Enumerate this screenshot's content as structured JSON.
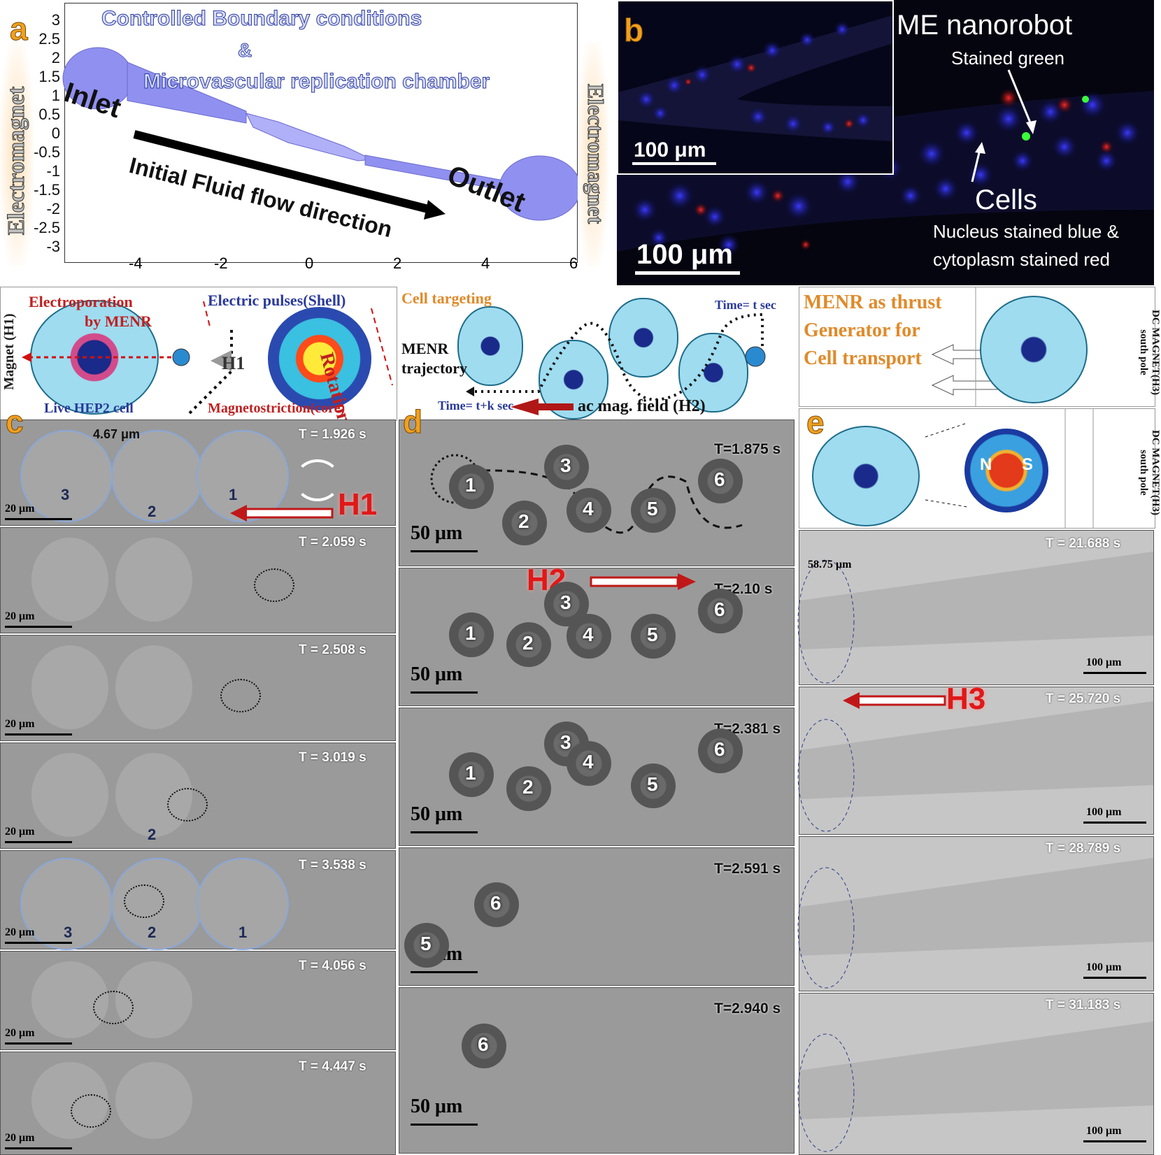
{
  "panels": {
    "a": "a",
    "b": "b",
    "c": "c",
    "d": "d",
    "e": "e"
  },
  "panel_a": {
    "title_line1": "Controlled Boundary conditions",
    "title_line2": "&",
    "title_line3": "Microvascular replication chamber",
    "inlet": "Inlet",
    "outlet": "Outlet",
    "flow_label": "Initial Fluid flow direction",
    "electromagnet_left": "Electromagnet",
    "electromagnet_right": "Electromagnet",
    "y_ticks": [
      "3",
      "2.5",
      "2",
      "1.5",
      "1",
      "0.5",
      "0",
      "-0.5",
      "-1",
      "-1.5",
      "-2",
      "-2.5",
      "-3"
    ],
    "x_ticks": [
      "-4",
      "-2",
      "0",
      "2",
      "4",
      "6"
    ]
  },
  "panel_b": {
    "inset_scale": "100 μm",
    "main_scale": "100 μm",
    "nanorobot": "ME nanorobot",
    "stained_green": "Stained green",
    "cells": "Cells",
    "stain_line1": "Nucleus stained blue &",
    "stain_line2": "cytoplasm stained red"
  },
  "band1": {
    "magnet_h1": "Magnet (H1)",
    "electroporation_line1": "Electroporation",
    "electroporation_line2": "by MENR",
    "electric_pulses": "Electric pulses(Shell)",
    "rotation": "Rotation",
    "h1": "H1",
    "live_cell": "Live HEP2 cell",
    "magnetostriction": "Magnetostriction(core)"
  },
  "band2": {
    "cell_targeting": "Cell targeting",
    "time_t": "Time= t sec",
    "menr": "MENR",
    "trajectory": "trajectory",
    "time_tk": "Time= t+k sec",
    "ac_field": "ac mag. field (H2)"
  },
  "band3": {
    "thrust_line1": "MENR as thrust",
    "thrust_line2": "Generator for",
    "thrust_line3": "Cell transport",
    "dc_magnet": "DC MAGNET(H3) south pole"
  },
  "panel_e_band": {
    "dc_magnet": "DC MAGNET(H3) south pole",
    "n": "N",
    "s": "S"
  },
  "panel_c": {
    "distance": "4.67 μm",
    "scale": "20 μm",
    "h1": "H1",
    "frames": [
      {
        "time": "T = 1.926 s",
        "nums": [
          "3",
          "2",
          "1"
        ]
      },
      {
        "time": "T = 2.059 s"
      },
      {
        "time": "T = 2.508 s"
      },
      {
        "time": "T = 3.019 s",
        "nums": [
          "2"
        ]
      },
      {
        "time": "T = 3.538 s",
        "nums": [
          "3",
          "2",
          "1"
        ]
      },
      {
        "time": "T = 4.056 s"
      },
      {
        "time": "T = 4.447 s"
      }
    ]
  },
  "panel_d": {
    "scale": "50 μm",
    "h2": "H2",
    "frames": [
      {
        "time": "T=1.875 s"
      },
      {
        "time": "T=2.10 s"
      },
      {
        "time": "T=2.381 s"
      },
      {
        "time": "T=2.591 s"
      },
      {
        "time": "T=2.940 s"
      }
    ],
    "nums": [
      "1",
      "2",
      "3",
      "4",
      "5",
      "6"
    ]
  },
  "panel_e": {
    "distance": "58.75 μm",
    "scale": "100 μm",
    "h3": "H3",
    "frames": [
      {
        "time": "T = 21.688 s"
      },
      {
        "time": "T = 25.720 s"
      },
      {
        "time": "T = 28.789 s"
      },
      {
        "time": "T = 31.183 s"
      }
    ]
  },
  "colors": {
    "accent_orange": "#f0a020",
    "field_red": "#e01818",
    "channel_blue": "#8c8cf0",
    "title_blue": "#2a3a9a"
  }
}
